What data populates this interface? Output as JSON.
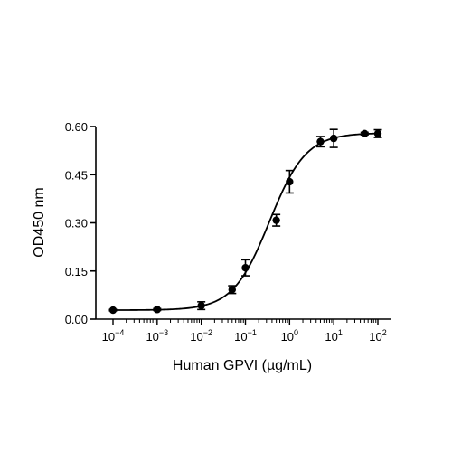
{
  "chart_data": {
    "type": "scatter",
    "title": "",
    "xlabel": "Human GPVI (µg/mL)",
    "ylabel": "OD450 nm",
    "x_scale": "log",
    "xlim": [
      0.0001,
      100
    ],
    "ylim": [
      0,
      0.6
    ],
    "x_ticks": [
      0.0001,
      0.001,
      0.01,
      0.1,
      1,
      10,
      100
    ],
    "x_tick_labels": [
      {
        "base": "10",
        "exp": "-4"
      },
      {
        "base": "10",
        "exp": "-3"
      },
      {
        "base": "10",
        "exp": "-2"
      },
      {
        "base": "10",
        "exp": "-1"
      },
      {
        "base": "10",
        "exp": "0"
      },
      {
        "base": "10",
        "exp": "1"
      },
      {
        "base": "10",
        "exp": "2"
      }
    ],
    "y_ticks": [
      0,
      0.15,
      0.3,
      0.45,
      0.6
    ],
    "y_tick_labels": [
      "0.00",
      "0.15",
      "0.30",
      "0.45",
      "0.60"
    ],
    "grid": false,
    "legend": false,
    "series": [
      {
        "x": [
          0.0001,
          0.001,
          0.01,
          0.05,
          0.1,
          0.5,
          1,
          5,
          10,
          50,
          100
        ],
        "y": [
          0.028,
          0.03,
          0.042,
          0.092,
          0.16,
          0.308,
          0.428,
          0.553,
          0.563,
          0.578,
          0.578
        ],
        "yerr": [
          0.002,
          0.003,
          0.012,
          0.012,
          0.025,
          0.018,
          0.035,
          0.016,
          0.028,
          0.004,
          0.012
        ],
        "fit": {
          "model": "4PL",
          "bottom": 0.028,
          "top": 0.58,
          "ec50": 0.35,
          "hill": 1.05
        }
      }
    ],
    "colors": {
      "marker": "#000000",
      "line": "#000000",
      "axis": "#000000"
    }
  }
}
